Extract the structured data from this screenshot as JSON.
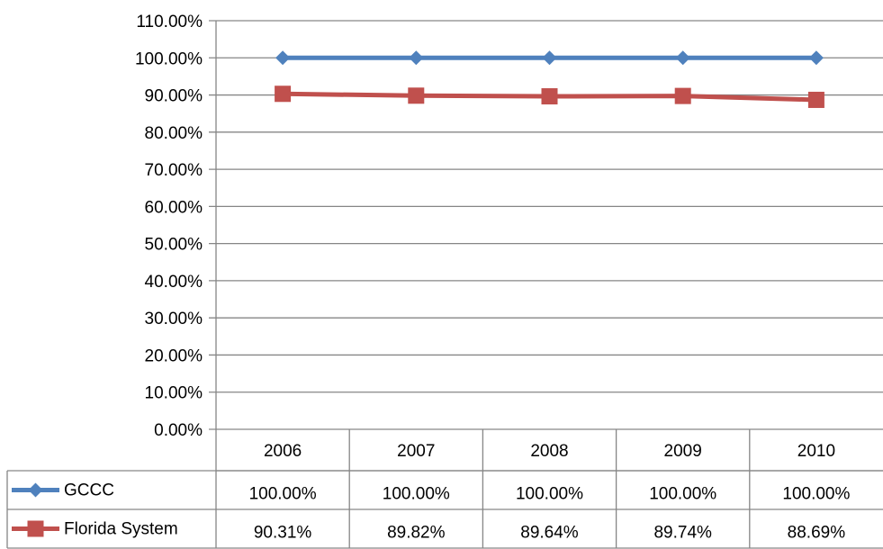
{
  "chart_data": {
    "type": "line",
    "categories": [
      "2006",
      "2007",
      "2008",
      "2009",
      "2010"
    ],
    "series": [
      {
        "name": "GCCC",
        "color": "#4F81BD",
        "marker": "diamond",
        "values": [
          1.0,
          1.0,
          1.0,
          1.0,
          1.0
        ],
        "labels": [
          "100.00%",
          "100.00%",
          "100.00%",
          "100.00%",
          "100.00%"
        ]
      },
      {
        "name": "Florida System",
        "color": "#C0504D",
        "marker": "square",
        "values": [
          0.9031,
          0.8982,
          0.8964,
          0.8974,
          0.8869
        ],
        "labels": [
          "90.31%",
          "89.82%",
          "89.64%",
          "89.74%",
          "88.69%"
        ]
      }
    ],
    "y_ticks": [
      "0.00%",
      "10.00%",
      "20.00%",
      "30.00%",
      "40.00%",
      "50.00%",
      "60.00%",
      "70.00%",
      "80.00%",
      "90.00%",
      "100.00%",
      "110.00%"
    ],
    "ylim": [
      0,
      1.1
    ],
    "grid": true,
    "legend": "data-table"
  }
}
